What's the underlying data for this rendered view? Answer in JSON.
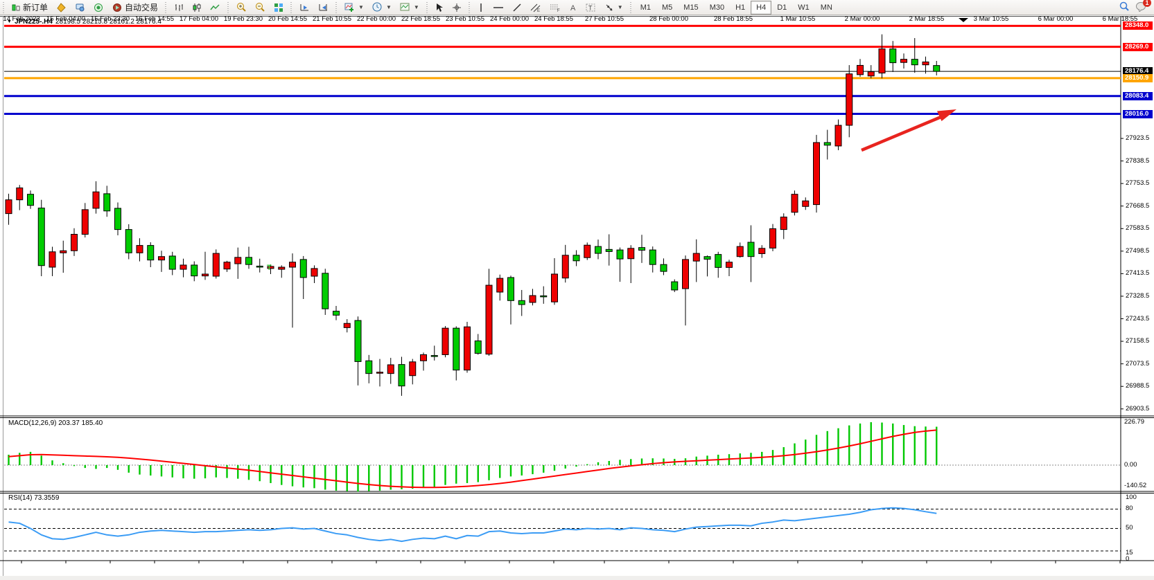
{
  "toolbar": {
    "new_order_label": "新订单",
    "auto_trading_label": "自动交易",
    "timeframes": [
      "M1",
      "M5",
      "M15",
      "M30",
      "H1",
      "H4",
      "D1",
      "W1",
      "MN"
    ],
    "active_timeframe": "H4",
    "notification_count": "1",
    "icons": [
      "quote-icon",
      "tag-icon",
      "market-watch-icon",
      "signal-icon",
      "autotrade-icon",
      "bar-chart-icon",
      "candlestick-chart-icon",
      "line-chart-icon",
      "zoom-in-icon",
      "zoom-out-icon",
      "tile-windows-icon",
      "auto-scroll-icon",
      "chart-shift-icon",
      "add-indicator-icon",
      "period-icon",
      "template-icon",
      "cursor-icon",
      "crosshair-icon",
      "vertical-line-icon",
      "horizontal-line-icon",
      "trendline-icon",
      "channel-icon",
      "fibonacci-icon",
      "text-icon",
      "text-label-icon",
      "arrows-icon",
      "search-icon",
      "chat-icon"
    ]
  },
  "chart": {
    "title": "JPN225-.H4",
    "ohlc_text": "28198.5 28215.8 28161.2 28176.4",
    "marker_text": "T"
  },
  "chart_data": {
    "type": "candlestick",
    "symbol": "JPN225-",
    "timeframe": "H4",
    "current_bar": {
      "open": 28198.5,
      "high": 28215.8,
      "low": 28161.2,
      "close": 28176.4
    },
    "up_color": "#ee0000",
    "down_color": "#00cc00",
    "price_axis_ticks": [
      27923.5,
      27838.5,
      27753.5,
      27668.5,
      27583.5,
      27498.5,
      27413.5,
      27328.5,
      27243.5,
      27158.5,
      27073.5,
      26988.5,
      26903.5
    ],
    "horizontal_lines": [
      {
        "price": 28348.0,
        "label": "28348.0",
        "color": "#ff0000",
        "width": 3
      },
      {
        "price": 28269.0,
        "label": "28269.0",
        "color": "#ff0000",
        "width": 3
      },
      {
        "price": 28176.4,
        "label": "28176.4",
        "color": "#000000",
        "width": 1
      },
      {
        "price": 28150.9,
        "label": "28150.9",
        "color": "#ffa500",
        "width": 3
      },
      {
        "price": 28083.4,
        "label": "28083.4",
        "color": "#0000cd",
        "width": 3
      },
      {
        "price": 28016.0,
        "label": "28016.0",
        "color": "#0000cd",
        "width": 3
      }
    ],
    "candles": [
      [
        27640,
        27715,
        27598,
        27692
      ],
      [
        27692,
        27748,
        27653,
        27737
      ],
      [
        27713,
        27727,
        27658,
        27671
      ],
      [
        27661,
        27692,
        27404,
        27444
      ],
      [
        27438,
        27515,
        27404,
        27496
      ],
      [
        27492,
        27538,
        27417,
        27500
      ],
      [
        27500,
        27585,
        27480,
        27562
      ],
      [
        27562,
        27680,
        27550,
        27655
      ],
      [
        27660,
        27762,
        27640,
        27722
      ],
      [
        27715,
        27745,
        27628,
        27650
      ],
      [
        27660,
        27682,
        27558,
        27580
      ],
      [
        27580,
        27600,
        27468,
        27492
      ],
      [
        27492,
        27547,
        27460,
        27520
      ],
      [
        27520,
        27532,
        27438,
        27465
      ],
      [
        27465,
        27500,
        27420,
        27478
      ],
      [
        27480,
        27496,
        27408,
        27430
      ],
      [
        27430,
        27470,
        27400,
        27446
      ],
      [
        27446,
        27460,
        27385,
        27405
      ],
      [
        27405,
        27496,
        27390,
        27412
      ],
      [
        27404,
        27505,
        27395,
        27490
      ],
      [
        27431,
        27462,
        27420,
        27457
      ],
      [
        27451,
        27512,
        27394,
        27475
      ],
      [
        27475,
        27515,
        27432,
        27448
      ],
      [
        27442,
        27470,
        27418,
        27440
      ],
      [
        27433,
        27448,
        27412,
        27441
      ],
      [
        27430,
        27445,
        27398,
        27438
      ],
      [
        27438,
        27490,
        27210,
        27457
      ],
      [
        27467,
        27480,
        27318,
        27399
      ],
      [
        27404,
        27445,
        27378,
        27433
      ],
      [
        27415,
        27432,
        27258,
        27281
      ],
      [
        27272,
        27292,
        27238,
        27257
      ],
      [
        27210,
        27242,
        27192,
        27226
      ],
      [
        27237,
        27252,
        26992,
        27082
      ],
      [
        27085,
        27107,
        27000,
        27037
      ],
      [
        27040,
        27092,
        26988,
        27042
      ],
      [
        27037,
        27096,
        26998,
        27070
      ],
      [
        27071,
        27100,
        26953,
        26990
      ],
      [
        27029,
        27092,
        26996,
        27081
      ],
      [
        27085,
        27116,
        27048,
        27108
      ],
      [
        27105,
        27142,
        27086,
        27102
      ],
      [
        27108,
        27216,
        27098,
        27208
      ],
      [
        27208,
        27215,
        27011,
        27050
      ],
      [
        27050,
        27232,
        27040,
        27213
      ],
      [
        27160,
        27186,
        27108,
        27113
      ],
      [
        27110,
        27432,
        27104,
        27370
      ],
      [
        27344,
        27410,
        27312,
        27396
      ],
      [
        27399,
        27406,
        27222,
        27312
      ],
      [
        27312,
        27352,
        27254,
        27297
      ],
      [
        27305,
        27356,
        27294,
        27331
      ],
      [
        27330,
        27366,
        27300,
        27328
      ],
      [
        27307,
        27472,
        27296,
        27412
      ],
      [
        27397,
        27522,
        27380,
        27483
      ],
      [
        27483,
        27502,
        27442,
        27462
      ],
      [
        27474,
        27531,
        27465,
        27521
      ],
      [
        27516,
        27542,
        27468,
        27490
      ],
      [
        27505,
        27562,
        27444,
        27497
      ],
      [
        27503,
        27512,
        27383,
        27469
      ],
      [
        27470,
        27521,
        27378,
        27509
      ],
      [
        27512,
        27560,
        27454,
        27502
      ],
      [
        27503,
        27516,
        27418,
        27448
      ],
      [
        27448,
        27471,
        27408,
        27422
      ],
      [
        27383,
        27392,
        27344,
        27352
      ],
      [
        27357,
        27482,
        27218,
        27467
      ],
      [
        27461,
        27543,
        27382,
        27490
      ],
      [
        27478,
        27482,
        27403,
        27468
      ],
      [
        27486,
        27496,
        27398,
        27437
      ],
      [
        27437,
        27466,
        27404,
        27457
      ],
      [
        27478,
        27531,
        27474,
        27516
      ],
      [
        27532,
        27596,
        27382,
        27478
      ],
      [
        27489,
        27521,
        27473,
        27509
      ],
      [
        27510,
        27601,
        27498,
        27583
      ],
      [
        27580,
        27641,
        27544,
        27627
      ],
      [
        27645,
        27727,
        27633,
        27713
      ],
      [
        27667,
        27701,
        27654,
        27688
      ],
      [
        27674,
        27937,
        27644,
        27908
      ],
      [
        27908,
        27956,
        27844,
        27898
      ],
      [
        27895,
        27995,
        27879,
        27973
      ],
      [
        27973,
        28200,
        27928,
        28167
      ],
      [
        28164,
        28223,
        28156,
        28199
      ],
      [
        28159,
        28200,
        28150,
        28175
      ],
      [
        28170,
        28316,
        28150,
        28261
      ],
      [
        28261,
        28291,
        28174,
        28209
      ],
      [
        28210,
        28244,
        28187,
        28222
      ],
      [
        28222,
        28302,
        28171,
        28201
      ],
      [
        28201,
        28232,
        28168,
        28212
      ],
      [
        28198.5,
        28215.8,
        28161.2,
        28176.4
      ]
    ],
    "macd": {
      "label": "MACD(12,26,9) 203.37 185.40",
      "axis_labels": [
        "226.79",
        "0.00",
        "-140.52"
      ],
      "histogram": [
        55,
        65,
        70,
        50,
        25,
        10,
        -5,
        -15,
        -20,
        -15,
        -25,
        -40,
        -50,
        -55,
        -60,
        -65,
        -70,
        -72,
        -70,
        -65,
        -68,
        -72,
        -78,
        -85,
        -95,
        -105,
        -112,
        -118,
        -122,
        -130,
        -135,
        -138,
        -140,
        -138,
        -135,
        -130,
        -128,
        -125,
        -120,
        -115,
        -105,
        -98,
        -95,
        -90,
        -80,
        -68,
        -60,
        -55,
        -48,
        -40,
        -30,
        -18,
        -8,
        5,
        15,
        22,
        28,
        32,
        35,
        36,
        35,
        33,
        36,
        45,
        50,
        55,
        58,
        62,
        65,
        70,
        80,
        95,
        115,
        135,
        160,
        180,
        195,
        210,
        220,
        227,
        225,
        220,
        212,
        206,
        204,
        203
      ],
      "signal": [
        45,
        50,
        55,
        56,
        54,
        52,
        50,
        48,
        46,
        44,
        41,
        37,
        32,
        27,
        21,
        15,
        9,
        3,
        -3,
        -9,
        -15,
        -21,
        -27,
        -34,
        -41,
        -48,
        -55,
        -62,
        -69,
        -76,
        -83,
        -90,
        -97,
        -103,
        -108,
        -112,
        -115,
        -117,
        -118,
        -118,
        -117,
        -115,
        -112,
        -108,
        -103,
        -97,
        -90,
        -82,
        -74,
        -66,
        -58,
        -50,
        -42,
        -34,
        -26,
        -18,
        -11,
        -4,
        2,
        8,
        13,
        17,
        20,
        23,
        26,
        29,
        32,
        35,
        38,
        41,
        45,
        50,
        56,
        63,
        71,
        80,
        90,
        101,
        113,
        126,
        139,
        152,
        163,
        173,
        180,
        185.4
      ]
    },
    "rsi": {
      "label": "RSI(14) 73.3559",
      "levels": [
        80,
        50,
        15
      ],
      "axis_labels": [
        "100",
        "80",
        "50",
        "15",
        "0"
      ],
      "values": [
        60,
        58,
        50,
        40,
        34,
        33,
        36,
        40,
        44,
        40,
        38,
        40,
        44,
        46,
        47,
        46,
        45,
        44,
        45,
        45,
        46,
        47,
        48,
        47,
        48,
        50,
        51,
        49,
        50,
        46,
        42,
        40,
        36,
        33,
        31,
        33,
        30,
        33,
        35,
        34,
        38,
        34,
        39,
        38,
        45,
        46,
        43,
        42,
        43,
        43,
        46,
        49,
        48,
        50,
        49,
        50,
        48,
        51,
        50,
        48,
        47,
        45,
        49,
        52,
        53,
        54,
        55,
        55,
        54,
        58,
        60,
        63,
        62,
        64,
        66,
        68,
        70,
        72,
        75,
        79,
        81,
        82,
        81,
        79,
        76,
        73.4
      ]
    },
    "time_labels": [
      "14 Feb 2023",
      "15 Feb 04:00",
      "15 Feb 23:30",
      "16 Feb 14:55",
      "17 Feb 04:00",
      "19 Feb 23:30",
      "20 Feb 14:55",
      "21 Feb 10:55",
      "22 Feb 00:00",
      "22 Feb 18:55",
      "23 Feb 10:55",
      "24 Feb 00:00",
      "24 Feb 18:55",
      "27 Feb 10:55",
      "28 Feb 00:00",
      "28 Feb 18:55",
      "1 Mar 10:55",
      "2 Mar 00:00",
      "2 Mar 18:55",
      "3 Mar 10:55",
      "6 Mar 00:00",
      "6 Mar 18:55"
    ]
  }
}
